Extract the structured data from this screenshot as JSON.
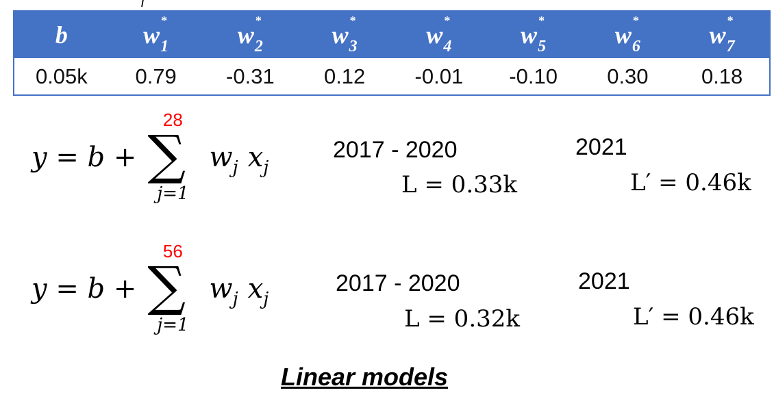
{
  "table": {
    "headers": [
      {
        "symbol": "b",
        "sub": "",
        "sup": ""
      },
      {
        "symbol": "w",
        "sub": "1",
        "sup": "*"
      },
      {
        "symbol": "w",
        "sub": "2",
        "sup": "*"
      },
      {
        "symbol": "w",
        "sub": "3",
        "sup": "*"
      },
      {
        "symbol": "w",
        "sub": "4",
        "sup": "*"
      },
      {
        "symbol": "w",
        "sub": "5",
        "sup": "*"
      },
      {
        "symbol": "w",
        "sub": "6",
        "sup": "*"
      },
      {
        "symbol": "w",
        "sub": "7",
        "sup": "*"
      }
    ],
    "values": [
      "0.05k",
      "0.79",
      "-0.31",
      "0.12",
      "-0.01",
      "-0.10",
      "0.30",
      "0.18"
    ],
    "header_color": "#4472c4"
  },
  "models": [
    {
      "lhs": "y = b +",
      "sum_upper": "28",
      "sum_lower": "j=1",
      "term_w": "w",
      "term_x": "x",
      "term_sub": "j",
      "train_years": "2017 - 2020",
      "train_loss": "L = 0.33k",
      "test_year": "2021",
      "test_loss": "L′ = 0.46k"
    },
    {
      "lhs": "y = b +",
      "sum_upper": "56",
      "sum_lower": "j=1",
      "term_w": "w",
      "term_x": "x",
      "term_sub": "j",
      "train_years": "2017 - 2020",
      "train_loss": "L = 0.32k",
      "test_year": "2021",
      "test_loss": "L′ = 0.46k"
    }
  ],
  "caption": "Linear models",
  "upper_limit_color": "#ff0000"
}
